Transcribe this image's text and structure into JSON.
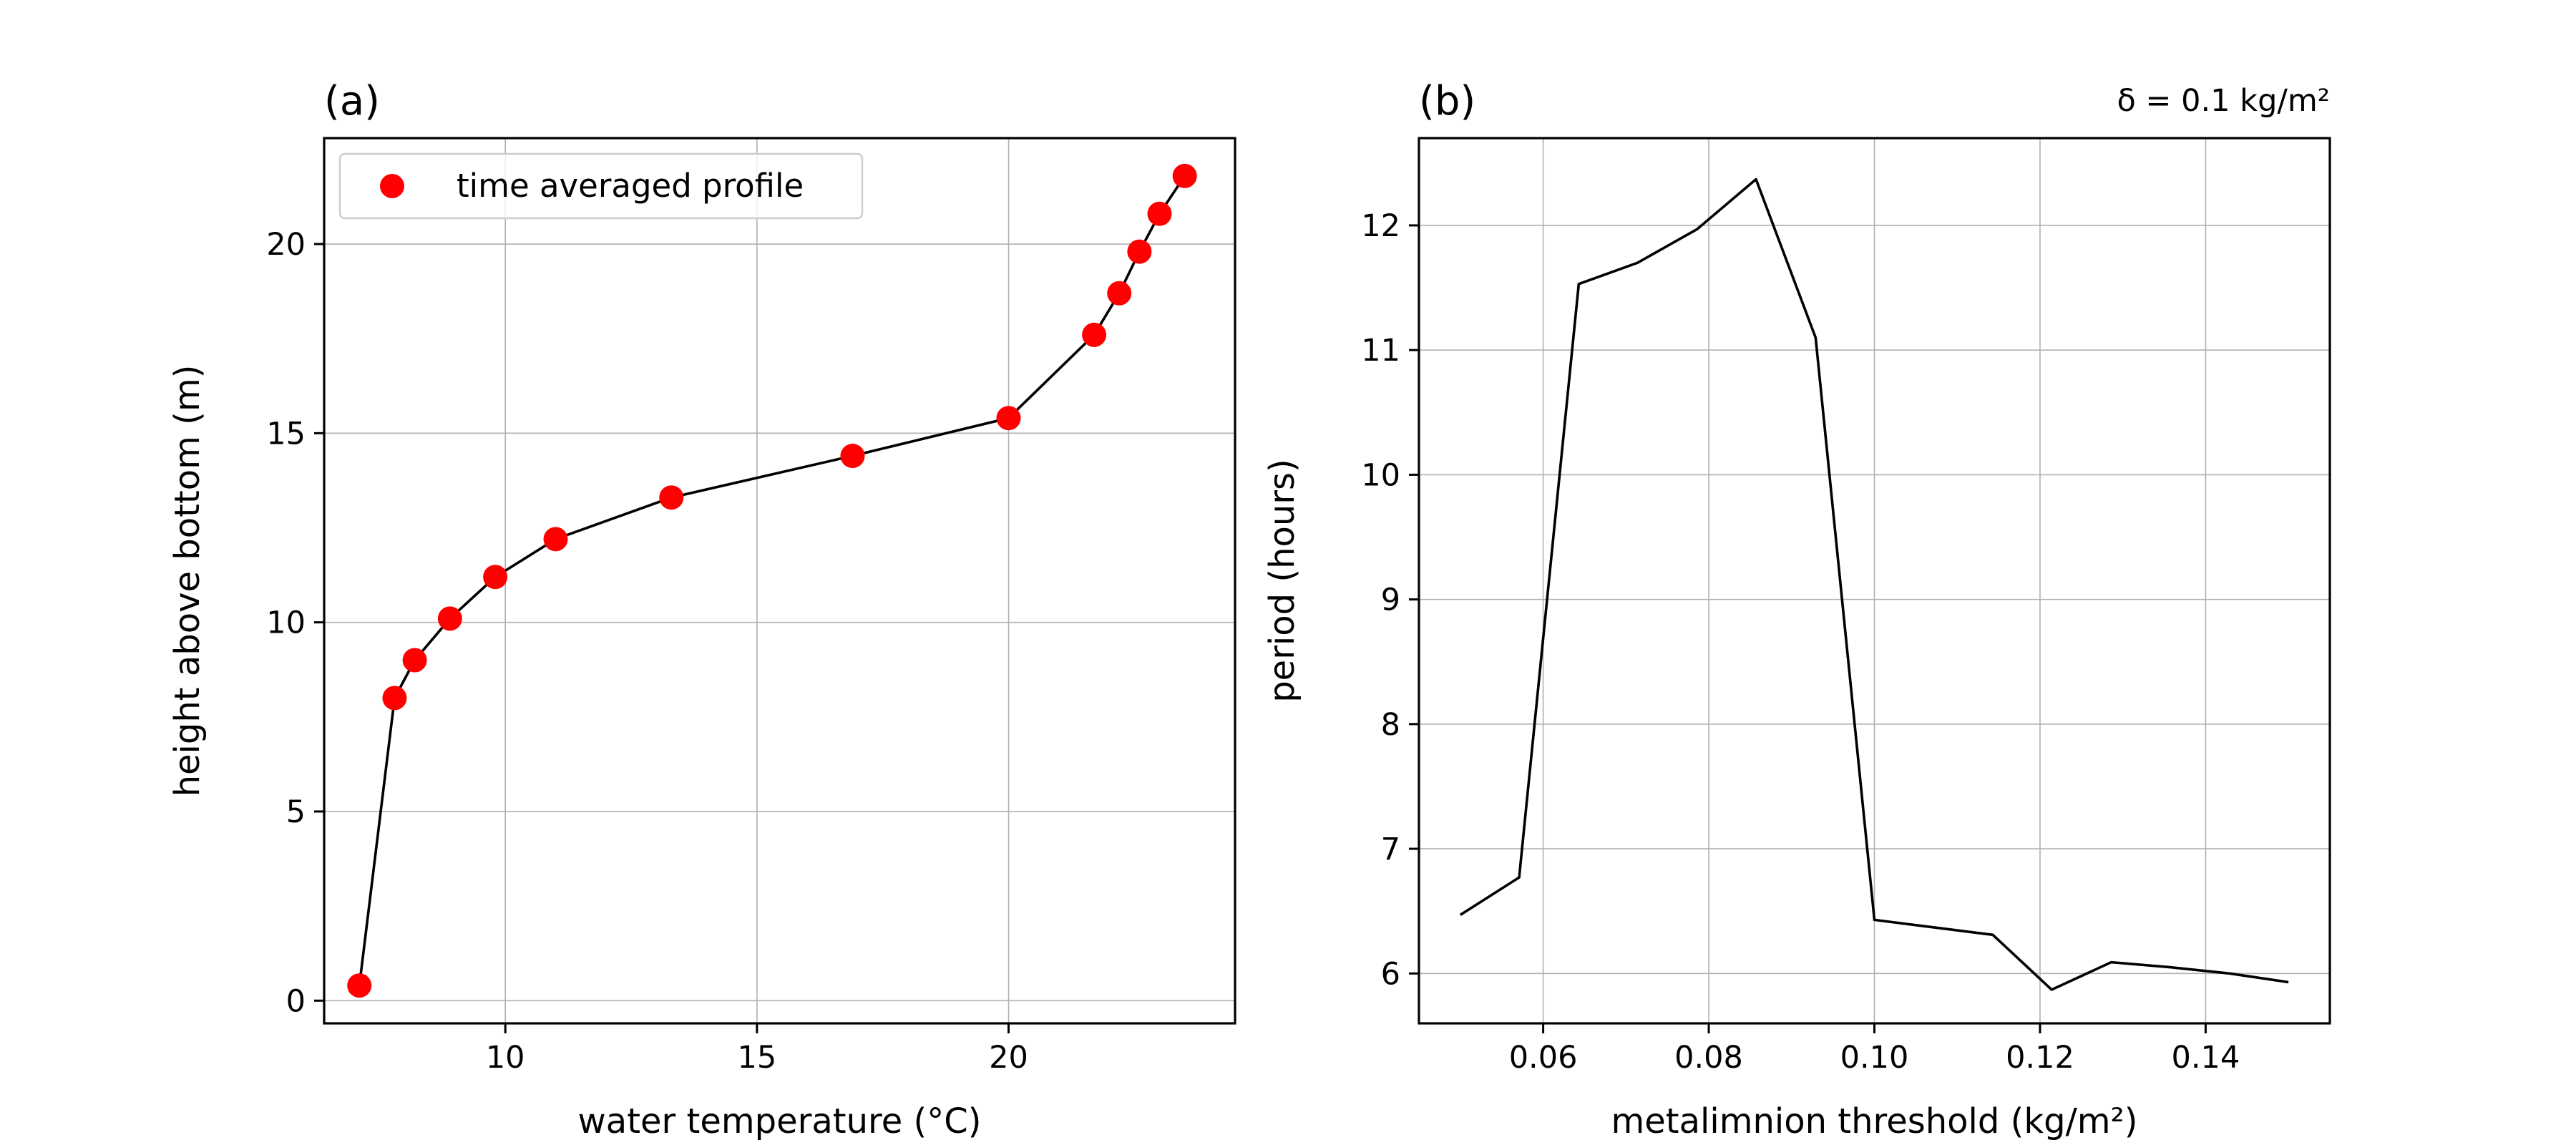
{
  "chart_data": [
    {
      "type": "scatter",
      "panel_label": "(a)",
      "xlabel": "water temperature (°C)",
      "ylabel": "height above bottom (m)",
      "xlim": [
        6.4,
        24.5
      ],
      "ylim": [
        -0.6,
        22.8
      ],
      "xticks": [
        10,
        15,
        20
      ],
      "yticks": [
        0,
        5,
        10,
        15,
        20
      ],
      "grid": true,
      "legend": {
        "position": "top-left",
        "entries": [
          "time averaged profile"
        ]
      },
      "series": [
        {
          "name": "time averaged profile",
          "marker": "circle",
          "connected_line": true,
          "color": "#ff0000",
          "line_color": "#000000",
          "x": [
            7.1,
            7.8,
            8.2,
            8.9,
            9.8,
            11.0,
            13.3,
            16.9,
            20.0,
            21.7,
            22.2,
            22.6,
            23.0,
            23.5
          ],
          "y": [
            0.4,
            8.0,
            9.0,
            10.1,
            11.2,
            12.2,
            13.3,
            14.4,
            15.4,
            17.6,
            18.7,
            19.8,
            20.8,
            21.8
          ]
        }
      ]
    },
    {
      "type": "line",
      "panel_label": "(b)",
      "annotation": "δ =  0.1 kg/m²",
      "xlabel": "metalimnion threshold (kg/m²)",
      "ylabel": "period (hours)",
      "xlim": [
        0.045,
        0.155
      ],
      "ylim": [
        5.6,
        12.7
      ],
      "xticks": [
        0.06,
        0.08,
        0.1,
        0.12,
        0.14
      ],
      "xtick_labels": [
        "0.06",
        "0.08",
        "0.10",
        "0.12",
        "0.14"
      ],
      "yticks": [
        6,
        7,
        8,
        9,
        10,
        11,
        12
      ],
      "grid": true,
      "series": [
        {
          "color": "#000000",
          "x": [
            0.05,
            0.0571,
            0.0643,
            0.0714,
            0.0786,
            0.0857,
            0.0929,
            0.1,
            0.1071,
            0.1143,
            0.1214,
            0.1286,
            0.1357,
            0.1429,
            0.15
          ],
          "y": [
            6.47,
            6.77,
            11.53,
            11.7,
            11.97,
            12.37,
            11.1,
            6.43,
            6.37,
            6.31,
            5.87,
            6.09,
            6.05,
            6.0,
            5.93
          ]
        }
      ]
    }
  ]
}
